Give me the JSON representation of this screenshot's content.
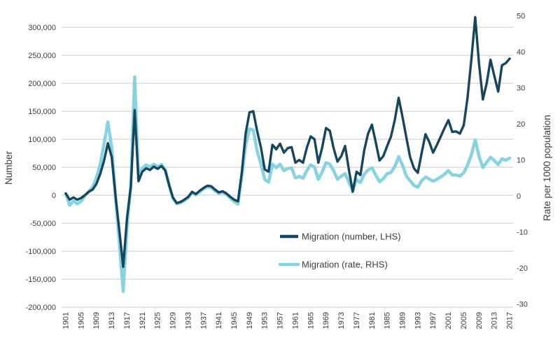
{
  "chart_data": {
    "type": "line",
    "title": "",
    "grid": "horizontal",
    "grid_color": "#c9c9c9",
    "background": "#ffffff",
    "years": [
      1901,
      1902,
      1903,
      1904,
      1905,
      1906,
      1907,
      1908,
      1909,
      1910,
      1911,
      1912,
      1913,
      1914,
      1915,
      1916,
      1917,
      1918,
      1919,
      1920,
      1921,
      1922,
      1923,
      1924,
      1925,
      1926,
      1927,
      1928,
      1929,
      1930,
      1931,
      1932,
      1933,
      1934,
      1935,
      1936,
      1937,
      1938,
      1939,
      1940,
      1941,
      1942,
      1943,
      1944,
      1945,
      1946,
      1947,
      1948,
      1949,
      1950,
      1951,
      1952,
      1953,
      1954,
      1955,
      1956,
      1957,
      1958,
      1959,
      1960,
      1961,
      1962,
      1963,
      1964,
      1965,
      1966,
      1967,
      1968,
      1969,
      1970,
      1971,
      1972,
      1973,
      1974,
      1975,
      1976,
      1977,
      1978,
      1979,
      1980,
      1981,
      1982,
      1983,
      1984,
      1985,
      1986,
      1987,
      1988,
      1989,
      1990,
      1991,
      1992,
      1993,
      1994,
      1995,
      1996,
      1997,
      1998,
      1999,
      2000,
      2001,
      2002,
      2003,
      2004,
      2005,
      2006,
      2007,
      2008,
      2009,
      2010,
      2011,
      2012,
      2013,
      2014,
      2015,
      2016,
      2017
    ],
    "series": [
      {
        "name": "Migration (number, LHS)",
        "axis": "left",
        "color": "#16455f",
        "stroke_width": 3.4,
        "unit": "persons (thousands)",
        "values_thousands": [
          3,
          -8,
          -4,
          -8,
          -5,
          0,
          6,
          10,
          20,
          38,
          62,
          93,
          68,
          -2,
          -63,
          -128,
          -40,
          15,
          152,
          25,
          42,
          48,
          45,
          51,
          47,
          52,
          44,
          18,
          -4,
          -14,
          -12,
          -8,
          -3,
          6,
          2,
          8,
          13,
          17,
          16,
          10,
          5,
          7,
          3,
          -3,
          -8,
          -11,
          40,
          110,
          148,
          150,
          115,
          85,
          46,
          42,
          90,
          82,
          92,
          76,
          84,
          86,
          58,
          63,
          58,
          85,
          105,
          100,
          58,
          85,
          120,
          115,
          84,
          60,
          70,
          88,
          45,
          6,
          42,
          36,
          80,
          110,
          126,
          95,
          62,
          70,
          88,
          105,
          135,
          174,
          140,
          103,
          68,
          48,
          40,
          75,
          109,
          95,
          76,
          90,
          105,
          120,
          134,
          113,
          114,
          110,
          125,
          174,
          243,
          318,
          235,
          171,
          200,
          242,
          213,
          185,
          232,
          236,
          244
        ]
      },
      {
        "name": "Migration (rate, RHS)",
        "axis": "right",
        "color": "#84d2e2",
        "stroke_width": 4.5,
        "unit": "rate per 1000 population",
        "values": [
          0.6,
          -2.6,
          -1.4,
          -2.2,
          -1.5,
          0.1,
          1.2,
          2.4,
          5,
          8.8,
          14.5,
          20.5,
          13.5,
          -0.5,
          -12.9,
          -26.5,
          -8.2,
          3,
          33,
          4.6,
          7.7,
          8.6,
          8,
          8.8,
          8.1,
          8.7,
          7.3,
          3,
          -0.7,
          -2.2,
          -1.9,
          -1.3,
          -0.5,
          0.9,
          0.3,
          1.2,
          1.9,
          2.5,
          2.3,
          1.4,
          0.7,
          1,
          0.4,
          -0.6,
          -1.6,
          -2.3,
          5.5,
          14,
          18.6,
          18.3,
          12.5,
          8.8,
          4.6,
          3.8,
          8.8,
          7.8,
          8.8,
          7,
          7.6,
          7.8,
          5,
          5.4,
          4.9,
          7,
          8.6,
          8,
          4.6,
          6.6,
          9.2,
          8.8,
          7,
          4.6,
          5.5,
          6.2,
          3.8,
          1.5,
          4.5,
          3.7,
          6,
          7.2,
          7.8,
          5.8,
          3.9,
          4.8,
          6.2,
          6.5,
          8.2,
          10.9,
          8.5,
          5.5,
          4.2,
          2.9,
          2.4,
          4.2,
          5.2,
          4.7,
          4.1,
          4.6,
          5.3,
          6,
          7,
          5.8,
          5.8,
          5.5,
          6.4,
          8.5,
          11.4,
          15.5,
          11,
          7.9,
          9.3,
          10.7,
          9.8,
          8.7,
          10.3,
          9.9,
          10.5
        ]
      }
    ],
    "y_left": {
      "label": "Number",
      "min": -200000,
      "max": 300000,
      "tick_step": 50000,
      "tick_values_thousands": [
        300,
        250,
        200,
        150,
        100,
        50,
        0,
        -50,
        -100,
        -150,
        -200
      ],
      "tick_labels": [
        "300,000",
        "250,000",
        "200,000",
        "150,000",
        "100,000",
        "50,000",
        "0",
        "-50,000",
        "-100,000",
        "-150,000",
        "-200,000"
      ]
    },
    "y_right": {
      "label": "Rate per 1000 population",
      "min": -30,
      "max": 50,
      "tick_step": 10,
      "tick_values": [
        50,
        40,
        30,
        20,
        10,
        0,
        -10,
        -20,
        -30
      ]
    },
    "x_axis": {
      "tick_years": [
        1901,
        1905,
        1909,
        1913,
        1917,
        1921,
        1925,
        1929,
        1933,
        1937,
        1941,
        1945,
        1949,
        1953,
        1957,
        1961,
        1965,
        1969,
        1973,
        1977,
        1981,
        1985,
        1989,
        1993,
        1997,
        2001,
        2005,
        2009,
        2013,
        2017
      ],
      "label_rotation_deg": -90
    },
    "legend": {
      "position": "inside-lower-middle",
      "entries": [
        "Migration (number, LHS)",
        "Migration (rate, RHS)"
      ]
    },
    "text_color": "#3d3d3d"
  }
}
